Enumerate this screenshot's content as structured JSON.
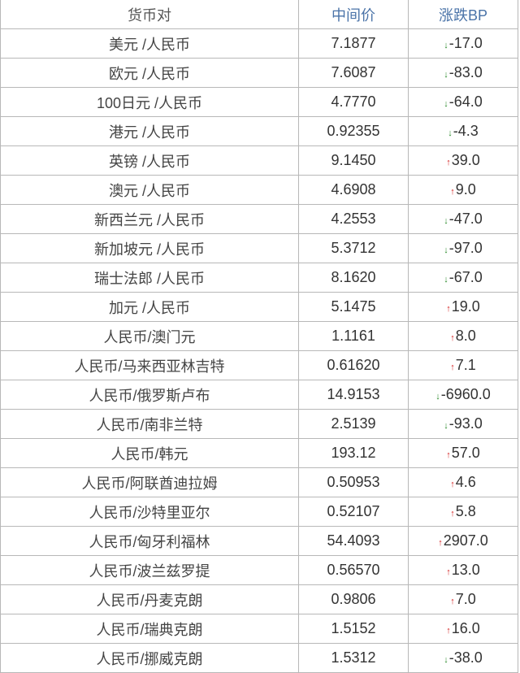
{
  "headers": {
    "pair": "货币对",
    "mid": "中间价",
    "change": "涨跌BP"
  },
  "colors": {
    "up": "#d42020",
    "down": "#2a8a2a",
    "header_accent": "#4a73a8"
  },
  "rows": [
    {
      "pair": "美元 /人民币",
      "mid": "7.1877",
      "dir": "down",
      "change": "-17.0"
    },
    {
      "pair": "欧元 /人民币",
      "mid": "7.6087",
      "dir": "down",
      "change": "-83.0"
    },
    {
      "pair": "100日元 /人民币",
      "mid": "4.7770",
      "dir": "down",
      "change": "-64.0"
    },
    {
      "pair": "港元 /人民币",
      "mid": "0.92355",
      "dir": "down",
      "change": "-4.3"
    },
    {
      "pair": "英镑 /人民币",
      "mid": "9.1450",
      "dir": "up",
      "change": "39.0"
    },
    {
      "pair": "澳元 /人民币",
      "mid": "4.6908",
      "dir": "up",
      "change": "9.0"
    },
    {
      "pair": "新西兰元 /人民币",
      "mid": "4.2553",
      "dir": "down",
      "change": "-47.0"
    },
    {
      "pair": "新加坡元 /人民币",
      "mid": "5.3712",
      "dir": "down",
      "change": "-97.0"
    },
    {
      "pair": "瑞士法郎 /人民币",
      "mid": "8.1620",
      "dir": "down",
      "change": "-67.0"
    },
    {
      "pair": "加元 /人民币",
      "mid": "5.1475",
      "dir": "up",
      "change": "19.0"
    },
    {
      "pair": "人民币/澳门元",
      "mid": "1.1161",
      "dir": "up",
      "change": "8.0"
    },
    {
      "pair": "人民币/马来西亚林吉特",
      "mid": "0.61620",
      "dir": "up",
      "change": "7.1"
    },
    {
      "pair": "人民币/俄罗斯卢布",
      "mid": "14.9153",
      "dir": "down",
      "change": "-6960.0"
    },
    {
      "pair": "人民币/南非兰特",
      "mid": "2.5139",
      "dir": "down",
      "change": "-93.0"
    },
    {
      "pair": "人民币/韩元",
      "mid": "193.12",
      "dir": "up",
      "change": "57.0"
    },
    {
      "pair": "人民币/阿联酋迪拉姆",
      "mid": "0.50953",
      "dir": "up",
      "change": "4.6"
    },
    {
      "pair": "人民币/沙特里亚尔",
      "mid": "0.52107",
      "dir": "up",
      "change": "5.8"
    },
    {
      "pair": "人民币/匈牙利福林",
      "mid": "54.4093",
      "dir": "up",
      "change": "2907.0"
    },
    {
      "pair": "人民币/波兰兹罗提",
      "mid": "0.56570",
      "dir": "up",
      "change": "13.0"
    },
    {
      "pair": "人民币/丹麦克朗",
      "mid": "0.9806",
      "dir": "up",
      "change": "7.0"
    },
    {
      "pair": "人民币/瑞典克朗",
      "mid": "1.5152",
      "dir": "up",
      "change": "16.0"
    },
    {
      "pair": "人民币/挪威克朗",
      "mid": "1.5312",
      "dir": "down",
      "change": "-38.0"
    }
  ]
}
